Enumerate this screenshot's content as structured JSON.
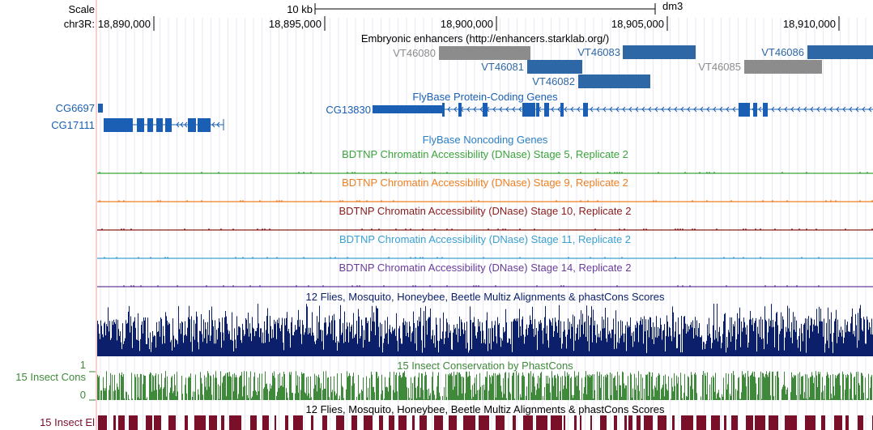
{
  "header": {
    "scale_label": "Scale",
    "scale_bar_label": "10 kb",
    "assembly": "dm3",
    "chrom_label": "chr3R:",
    "positions": [
      "18,890,000",
      "18,895,000",
      "18,900,000",
      "18,905,000",
      "18,910,000"
    ]
  },
  "enhancers": {
    "title": "Embryonic enhancers (http://enhancers.starklab.org/)",
    "items": [
      {
        "label": "VT46080",
        "color": "#8c8c8c"
      },
      {
        "label": "VT46081",
        "color": "#2e67a6"
      },
      {
        "label": "VT46082",
        "color": "#2e67a6"
      },
      {
        "label": "VT46083",
        "color": "#2e67a6"
      },
      {
        "label": "VT46085",
        "color": "#8c8c8c"
      },
      {
        "label": "VT46086",
        "color": "#2e67a6"
      }
    ]
  },
  "genes": {
    "title": "FlyBase Protein-Coding Genes",
    "items": [
      {
        "label": "CG6697"
      },
      {
        "label": "CG17111"
      },
      {
        "label": "CG13830"
      }
    ],
    "color": "#1a5fb4"
  },
  "noncoding": {
    "title": "FlyBase Noncoding Genes",
    "color": "#2b7fc4"
  },
  "dnase": [
    {
      "title": "BDTNP Chromatin Accessibility (DNase) Stage 5, Replicate 2",
      "color": "#3ba33b"
    },
    {
      "title": "BDTNP Chromatin Accessibility (DNase) Stage 9, Replicate 2",
      "color": "#ef7f22"
    },
    {
      "title": "BDTNP Chromatin Accessibility (DNase) Stage 10, Replicate 2",
      "color": "#8b1c1c"
    },
    {
      "title": "BDTNP Chromatin Accessibility (DNase) Stage 11, Replicate 2",
      "color": "#3aa0d1"
    },
    {
      "title": "BDTNP Chromatin Accessibility (DNase) Stage 14, Replicate 2",
      "color": "#6a3d9a"
    }
  ],
  "multiz": {
    "title": "12 Flies, Mosquito, Honeybee, Beetle Multiz Alignments & phastCons Scores",
    "color": "#0b1f6b"
  },
  "phastcons": {
    "title": "15 Insect Conservation by PhastCons",
    "side_label": "15 Insect Cons",
    "max_label": "1",
    "min_label": "0",
    "color": "#3e8a3a"
  },
  "elements": {
    "title": "12 Flies, Mosquito, Honeybee, Beetle Multiz Alignments & phastCons Scores",
    "side_label": "15 Insect El",
    "color": "#7a0f2a"
  }
}
